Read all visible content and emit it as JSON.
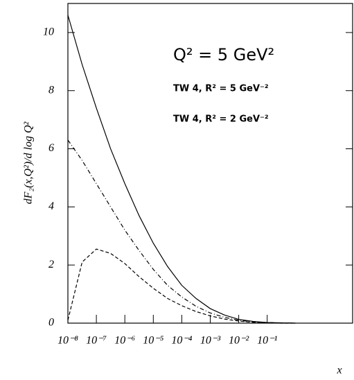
{
  "chart_data": {
    "type": "line",
    "log_x": true,
    "xlabel": "x",
    "ylabel": "dF₂(x,Q²)/d log Q²",
    "annotation": "Q² = 5 GeV²",
    "xlim": [
      1e-08,
      100
    ],
    "ylim": [
      0,
      11
    ],
    "xticks": [
      {
        "value": 1e-08,
        "label": "10⁻⁸"
      },
      {
        "value": 1e-07,
        "label": "10⁻⁷"
      },
      {
        "value": 1e-06,
        "label": "10⁻⁶"
      },
      {
        "value": 1e-05,
        "label": "10⁻⁵"
      },
      {
        "value": 0.0001,
        "label": "10⁻⁴"
      },
      {
        "value": 0.001,
        "label": "10⁻³"
      },
      {
        "value": 0.01,
        "label": "10⁻²"
      },
      {
        "value": 0.1,
        "label": "10⁻¹"
      }
    ],
    "yticks": [
      0,
      2,
      4,
      6,
      8,
      10
    ],
    "x": [
      1e-08,
      3.162e-08,
      1e-07,
      3.162e-07,
      1e-06,
      3.162e-06,
      1e-05,
      3.162e-05,
      0.0001,
      0.0003162,
      0.001,
      0.003162,
      0.01,
      0.03162,
      0.1,
      0.3162,
      1
    ],
    "series": [
      {
        "color": "#000000",
        "dash": "solid",
        "values": [
          10.6,
          8.9,
          7.4,
          6.0,
          4.8,
          3.7,
          2.75,
          1.95,
          1.3,
          0.85,
          0.5,
          0.28,
          0.13,
          0.06,
          0.02,
          0.01,
          0
        ]
      },
      {
        "name": "TW 4, R² = 5 GeV⁻²",
        "color": "#000000",
        "dash": "dashdot",
        "values": [
          6.3,
          5.6,
          4.8,
          4.0,
          3.2,
          2.5,
          1.85,
          1.3,
          0.9,
          0.58,
          0.35,
          0.2,
          0.1,
          0.04,
          0.02,
          0.01,
          0
        ]
      },
      {
        "name": "TW 4, R² = 2 GeV⁻²",
        "color": "#000000",
        "dash": "dashed",
        "values": [
          0.1,
          2.1,
          2.55,
          2.4,
          2.05,
          1.6,
          1.2,
          0.85,
          0.6,
          0.4,
          0.25,
          0.14,
          0.07,
          0.03,
          0.01,
          0,
          0
        ]
      }
    ]
  }
}
